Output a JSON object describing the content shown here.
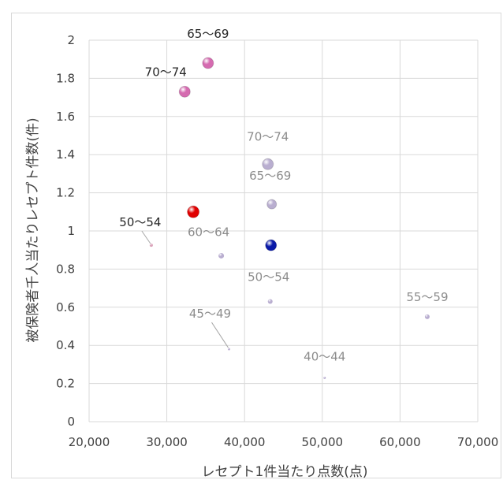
{
  "chart_data": {
    "type": "scatter",
    "xlabel": "レセプト1件当たり点数(点)",
    "ylabel": "被保険者千人当たりレセプト件数(件)",
    "xlim": [
      20000,
      70000
    ],
    "ylim": [
      0,
      2
    ],
    "x_ticks": [
      20000,
      30000,
      40000,
      50000,
      60000,
      70000
    ],
    "x_tick_labels": [
      "20,000",
      "30,000",
      "40,000",
      "50,000",
      "60,000",
      "70,000"
    ],
    "y_ticks": [
      0,
      0.2,
      0.4,
      0.6,
      0.8,
      1,
      1.2,
      1.4,
      1.6,
      1.8,
      2
    ],
    "y_tick_labels": [
      "0",
      "0.2",
      "0.4",
      "0.6",
      "0.8",
      "1",
      "1.2",
      "1.4",
      "1.6",
      "1.8",
      "2"
    ],
    "grid": "vertical and horizontal",
    "points": [
      {
        "x": 35300,
        "y": 1.88,
        "size": 7,
        "color": "#d56bb0",
        "label": "65〜69",
        "label_color": "#262626"
      },
      {
        "x": 32300,
        "y": 1.73,
        "size": 7,
        "color": "#d56bb0",
        "label": "70〜74",
        "label_color": "#262626"
      },
      {
        "x": 33400,
        "y": 1.1,
        "size": 7.5,
        "color": "#e00000",
        "label": "",
        "label_color": ""
      },
      {
        "x": 28000,
        "y": 0.925,
        "size": 2,
        "color": "#d9a0b8",
        "label": "50〜54",
        "label_color": "#262626"
      },
      {
        "x": 43000,
        "y": 1.35,
        "size": 7,
        "color": "#b9aed0",
        "label": "70〜74",
        "label_color": "#8c8c8c"
      },
      {
        "x": 43500,
        "y": 1.14,
        "size": 6,
        "color": "#b9aed0",
        "label": "65〜69",
        "label_color": "#8c8c8c"
      },
      {
        "x": 43400,
        "y": 0.925,
        "size": 7,
        "color": "#0a1aa8",
        "label": "",
        "label_color": ""
      },
      {
        "x": 37000,
        "y": 0.87,
        "size": 3.5,
        "color": "#b9aed0",
        "label": "60〜64",
        "label_color": "#8c8c8c"
      },
      {
        "x": 43300,
        "y": 0.63,
        "size": 3,
        "color": "#b9aed0",
        "label": "50〜54",
        "label_color": "#8c8c8c"
      },
      {
        "x": 63500,
        "y": 0.55,
        "size": 3,
        "color": "#b9aed0",
        "label": "55〜59",
        "label_color": "#8c8c8c"
      },
      {
        "x": 38000,
        "y": 0.38,
        "size": 1.5,
        "color": "#b9aed0",
        "label": "45〜49",
        "label_color": "#8c8c8c"
      },
      {
        "x": 50300,
        "y": 0.23,
        "size": 1.5,
        "color": "#b9aed0",
        "label": "40〜44",
        "label_color": "#8c8c8c"
      }
    ]
  }
}
